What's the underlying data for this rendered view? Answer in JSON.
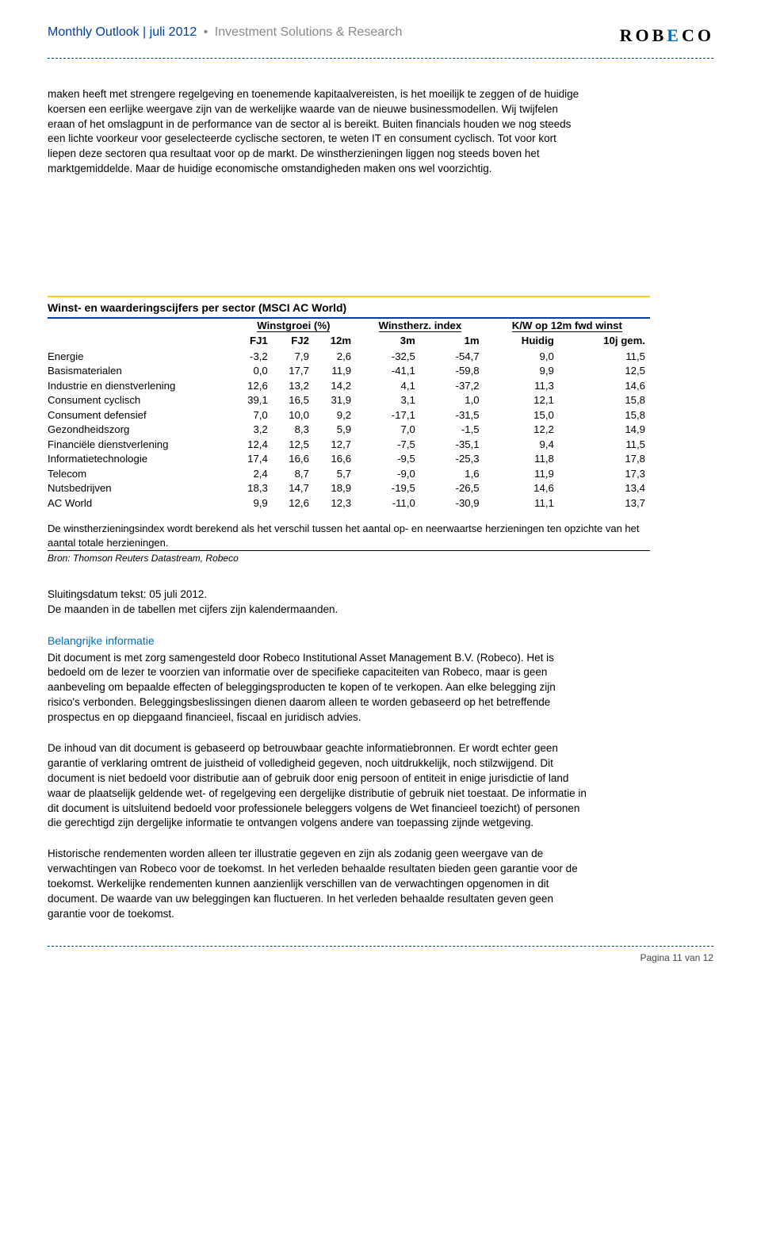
{
  "header": {
    "main": "Monthly Outlook | juli 2012",
    "bullet": "•",
    "tail": "Investment Solutions & Research",
    "logo_text": "ROBECO"
  },
  "intro": "maken heeft met strengere regelgeving en toenemende kapitaalvereisten, is het moeilijk te zeggen of de huidige koersen een eerlijke weergave zijn van de werkelijke waarde van de nieuwe businessmodellen. Wij twijfelen eraan of het omslagpunt in de performance van de sector al is bereikt. Buiten financials houden we nog steeds een lichte voorkeur voor geselecteerde cyclische sectoren, te weten IT en consument cyclisch. Tot voor kort liepen deze sectoren qua resultaat voor op de markt. De winstherzieningen liggen nog steeds boven het marktgemiddelde. Maar de huidige economische omstandigheden maken ons wel voorzichtig.",
  "table": {
    "title": "Winst- en waarderingscijfers per sector (MSCI AC World)",
    "group_headers": [
      "Winstgroei (%)",
      "Winstherz. index",
      "K/W op 12m fwd winst"
    ],
    "columns": [
      "FJ1",
      "FJ2",
      "12m",
      "3m",
      "1m",
      "Huidig",
      "10j gem."
    ],
    "rows": [
      {
        "label": "Energie",
        "v": [
          "-3,2",
          "7,9",
          "2,6",
          "-32,5",
          "-54,7",
          "9,0",
          "11,5"
        ]
      },
      {
        "label": "Basismaterialen",
        "v": [
          "0,0",
          "17,7",
          "11,9",
          "-41,1",
          "-59,8",
          "9,9",
          "12,5"
        ]
      },
      {
        "label": "Industrie en dienstverlening",
        "v": [
          "12,6",
          "13,2",
          "14,2",
          "4,1",
          "-37,2",
          "11,3",
          "14,6"
        ]
      },
      {
        "label": "Consument cyclisch",
        "v": [
          "39,1",
          "16,5",
          "31,9",
          "3,1",
          "1,0",
          "12,1",
          "15,8"
        ]
      },
      {
        "label": "Consument defensief",
        "v": [
          "7,0",
          "10,0",
          "9,2",
          "-17,1",
          "-31,5",
          "15,0",
          "15,8"
        ]
      },
      {
        "label": "Gezondheidszorg",
        "v": [
          "3,2",
          "8,3",
          "5,9",
          "7,0",
          "-1,5",
          "12,2",
          "14,9"
        ]
      },
      {
        "label": "Financiële dienstverlening",
        "v": [
          "12,4",
          "12,5",
          "12,7",
          "-7,5",
          "-35,1",
          "9,4",
          "11,5"
        ]
      },
      {
        "label": "Informatietechnologie",
        "v": [
          "17,4",
          "16,6",
          "16,6",
          "-9,5",
          "-25,3",
          "11,8",
          "17,8"
        ]
      },
      {
        "label": "Telecom",
        "v": [
          "2,4",
          "8,7",
          "5,7",
          "-9,0",
          "1,6",
          "11,9",
          "17,3"
        ]
      },
      {
        "label": "Nutsbedrijven",
        "v": [
          "18,3",
          "14,7",
          "18,9",
          "-19,5",
          "-26,5",
          "14,6",
          "13,4"
        ]
      }
    ],
    "summary": {
      "label": "AC World",
      "v": [
        "9,9",
        "12,6",
        "12,3",
        "-11,0",
        "-30,9",
        "11,1",
        "13,7"
      ]
    },
    "note": "De winstherzieningsindex wordt berekend als het verschil tussen het aantal op- en neerwaartse herzieningen ten opzichte van het aantal totale herzieningen.",
    "source": "Bron: Thomson Reuters Datastream, Robeco"
  },
  "closing": {
    "date_line": "Sluitingsdatum tekst: 05 juli 2012.",
    "maanden_line": "De maanden in de tabellen met cijfers zijn kalendermaanden."
  },
  "disclaimer": {
    "heading": "Belangrijke informatie",
    "p1": "Dit document is met zorg samengesteld door Robeco Institutional Asset Management B.V. (Robeco). Het is bedoeld om de lezer te voorzien van informatie over de specifieke capaciteiten van Robeco, maar is geen aanbeveling om bepaalde effecten of beleggingsproducten te kopen of te verkopen. Aan elke belegging zijn risico's verbonden. Beleggingsbeslissingen dienen daarom alleen te worden gebaseerd op het betreffende prospectus en op diepgaand financieel, fiscaal en juridisch advies.",
    "p2": "De inhoud van dit document is gebaseerd op betrouwbaar geachte informatiebronnen. Er wordt echter geen garantie of verklaring omtrent de juistheid of volledigheid gegeven, noch uitdrukkelijk, noch stilzwijgend. Dit document is niet bedoeld voor distributie aan of gebruik door enig persoon of entiteit in enige jurisdictie of land waar de plaatselijk geldende wet- of regelgeving een dergelijke distributie of gebruik niet toestaat. De informatie in dit document is uitsluitend bedoeld voor professionele beleggers volgens de Wet financieel toezicht) of personen die gerechtigd zijn dergelijke informatie te ontvangen volgens andere van toepassing zijnde wetgeving.",
    "p3": "Historische rendementen worden alleen ter illustratie gegeven en zijn als zodanig geen weergave van de verwachtingen van Robeco voor de toekomst. In het verleden behaalde resultaten bieden geen garantie voor de toekomst. Werkelijke rendementen kunnen aanzienlijk verschillen van de verwachtingen opgenomen in dit document. De waarde van uw beleggingen kan fluctueren. In het verleden behaalde resultaten geven geen garantie voor de toekomst."
  },
  "footer": {
    "page": "Pagina 11 van 12"
  },
  "colors": {
    "blue": "#003da5",
    "lightblue": "#006fba",
    "yellow": "#ffc428",
    "grey": "#888888"
  }
}
